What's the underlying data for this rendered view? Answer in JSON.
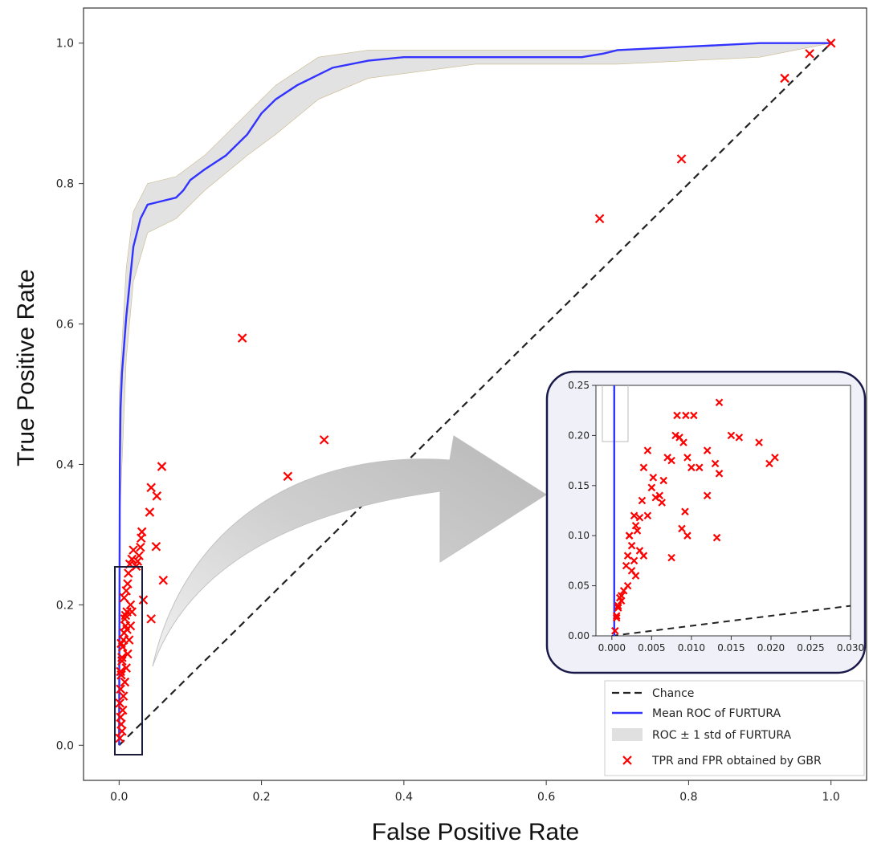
{
  "chart_data": [
    {
      "type": "line",
      "xlabel": "False Positive Rate",
      "ylabel": "True Positive Rate",
      "xlim": [
        -0.05,
        1.05
      ],
      "ylim": [
        -0.05,
        1.05
      ],
      "x_ticks": [
        "0.0",
        "0.2",
        "0.4",
        "0.6",
        "0.8",
        "1.0"
      ],
      "y_ticks": [
        "0.0",
        "0.2",
        "0.4",
        "0.6",
        "0.8",
        "1.0"
      ],
      "grid": false,
      "legend_position": "bottom-right",
      "series": [
        {
          "name": "Chance",
          "style": "dashed",
          "color": "#222222",
          "x": [
            0,
            1
          ],
          "y": [
            0,
            1
          ]
        },
        {
          "name": "Mean ROC of FURTURA",
          "style": "solid",
          "color": "#3333ff",
          "x": [
            0,
            0.001,
            0.002,
            0.004,
            0.007,
            0.01,
            0.015,
            0.02,
            0.03,
            0.04,
            0.06,
            0.08,
            0.09,
            0.1,
            0.12,
            0.15,
            0.18,
            0.2,
            0.22,
            0.25,
            0.28,
            0.3,
            0.35,
            0.4,
            0.5,
            0.6,
            0.65,
            0.68,
            0.7,
            0.8,
            0.9,
            1.0
          ],
          "y": [
            0,
            0.4,
            0.48,
            0.53,
            0.57,
            0.61,
            0.66,
            0.71,
            0.75,
            0.77,
            0.775,
            0.78,
            0.79,
            0.805,
            0.82,
            0.84,
            0.87,
            0.9,
            0.92,
            0.94,
            0.955,
            0.965,
            0.975,
            0.98,
            0.98,
            0.98,
            0.98,
            0.985,
            0.99,
            0.995,
            1.0,
            1.0
          ]
        },
        {
          "name": "ROC ± 1 std of FURTURA",
          "style": "band",
          "color": "#cccccc",
          "x": [
            0,
            0.01,
            0.02,
            0.04,
            0.08,
            0.12,
            0.18,
            0.22,
            0.28,
            0.35,
            0.5,
            0.7,
            0.9,
            1.0
          ],
          "upper": [
            0.5,
            0.68,
            0.76,
            0.8,
            0.81,
            0.84,
            0.9,
            0.94,
            0.98,
            0.99,
            0.99,
            0.99,
            1.0,
            1.0
          ],
          "lower": [
            0.3,
            0.55,
            0.66,
            0.73,
            0.75,
            0.79,
            0.84,
            0.87,
            0.92,
            0.95,
            0.97,
            0.97,
            0.98,
            1.0
          ]
        },
        {
          "name": "TPR and FPR obtained by GBR",
          "style": "markers",
          "color": "#ff0000",
          "x": [
            0.173,
            0.288,
            0.237,
            0.06,
            0.045,
            0.053,
            0.043,
            0.032,
            0.031,
            0.03,
            0.028,
            0.026,
            0.024,
            0.052,
            0.062,
            0.034,
            0.045,
            0.02,
            0.018,
            0.015,
            0.013,
            0.01,
            0.012,
            0.016,
            0.011,
            0.008,
            0.009,
            0.007,
            0.006,
            0.005,
            0.004,
            0.003,
            0.002,
            0.001,
            0.002,
            0.003,
            0.004,
            0.005,
            0.006,
            0.008,
            0.01,
            0.012,
            0.014,
            0.016,
            0.018,
            0.007,
            0.009,
            0.011,
            0.003,
            0.004,
            0.002,
            0.001,
            0.675,
            0.79,
            0.935,
            0.97,
            1.0
          ],
          "y": [
            0.58,
            0.435,
            0.383,
            0.397,
            0.367,
            0.355,
            0.332,
            0.304,
            0.295,
            0.282,
            0.27,
            0.262,
            0.255,
            0.283,
            0.235,
            0.207,
            0.18,
            0.278,
            0.265,
            0.258,
            0.245,
            0.22,
            0.23,
            0.2,
            0.19,
            0.18,
            0.17,
            0.16,
            0.15,
            0.14,
            0.12,
            0.1,
            0.08,
            0.06,
            0.04,
            0.03,
            0.02,
            0.05,
            0.07,
            0.09,
            0.11,
            0.13,
            0.15,
            0.17,
            0.19,
            0.21,
            0.185,
            0.165,
            0.145,
            0.125,
            0.105,
            0.01,
            0.75,
            0.835,
            0.95,
            0.985,
            1.0
          ]
        }
      ]
    },
    {
      "type": "scatter",
      "title": "",
      "xlim": [
        -0.002,
        0.03
      ],
      "ylim": [
        0,
        0.25
      ],
      "x_ticks": [
        "0.000",
        "0.005",
        "0.010",
        "0.015",
        "0.020",
        "0.025",
        "0.030"
      ],
      "y_ticks": [
        "0.00",
        "0.05",
        "0.10",
        "0.15",
        "0.20",
        "0.25"
      ],
      "series": [
        {
          "name": "TPR and FPR obtained by GBR",
          "color": "#ff0000",
          "x": [
            0.0004,
            0.0006,
            0.0008,
            0.001,
            0.0012,
            0.0015,
            0.0018,
            0.002,
            0.0022,
            0.0025,
            0.0028,
            0.003,
            0.0032,
            0.0035,
            0.0038,
            0.004,
            0.0045,
            0.005,
            0.0055,
            0.006,
            0.0065,
            0.007,
            0.0075,
            0.008,
            0.0085,
            0.009,
            0.0095,
            0.01,
            0.011,
            0.012,
            0.013,
            0.0135,
            0.015,
            0.016,
            0.0185,
            0.0198,
            0.0205,
            0.0082,
            0.0093,
            0.0103,
            0.0135,
            0.012,
            0.0088,
            0.0092,
            0.0095,
            0.0132,
            0.0075,
            0.0063,
            0.0052,
            0.0045,
            0.004,
            0.0028,
            0.0025,
            0.002,
            0.0012,
            0.0008,
            0.0006,
            0.003,
            0.0022,
            0.0035
          ],
          "y": [
            0.005,
            0.018,
            0.028,
            0.038,
            0.035,
            0.045,
            0.07,
            0.08,
            0.1,
            0.09,
            0.12,
            0.11,
            0.105,
            0.118,
            0.135,
            0.168,
            0.12,
            0.148,
            0.138,
            0.14,
            0.155,
            0.178,
            0.175,
            0.2,
            0.198,
            0.193,
            0.178,
            0.168,
            0.168,
            0.185,
            0.172,
            0.162,
            0.2,
            0.198,
            0.193,
            0.172,
            0.178,
            0.22,
            0.22,
            0.22,
            0.233,
            0.14,
            0.107,
            0.124,
            0.1,
            0.098,
            0.078,
            0.133,
            0.158,
            0.185,
            0.08,
            0.075,
            0.065,
            0.05,
            0.04,
            0.03,
            0.02,
            0.06,
            0.1,
            0.085
          ]
        }
      ]
    }
  ],
  "legend": {
    "items": [
      {
        "label": "Chance",
        "style": "dashed",
        "color": "#222222"
      },
      {
        "label": "Mean ROC of FURTURA",
        "style": "solid",
        "color": "#3333ff"
      },
      {
        "label": "ROC ± 1 std of FURTURA",
        "style": "band",
        "color": "#dddddd"
      },
      {
        "label": "TPR and FPR obtained by GBR",
        "style": "marker",
        "color": "#ff0000"
      }
    ]
  }
}
